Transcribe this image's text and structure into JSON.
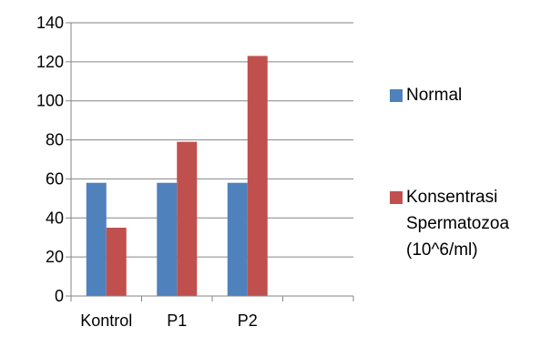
{
  "chart_data": {
    "type": "bar",
    "categories": [
      "Kontrol",
      "P1",
      "P2",
      ""
    ],
    "series": [
      {
        "name": "Normal",
        "values": [
          58,
          58,
          58,
          null
        ],
        "color": "#4F81BD"
      },
      {
        "name": "Konsentrasi\nSpermatozoa\n(10^6/ml)",
        "values": [
          35,
          79,
          123,
          null
        ],
        "color": "#C0504D"
      }
    ],
    "title": "",
    "xlabel": "",
    "ylabel": "",
    "ylim": [
      0,
      140
    ],
    "yticks": [
      0,
      20,
      40,
      60,
      80,
      100,
      120,
      140
    ],
    "grid": true,
    "legend_position": "right"
  }
}
